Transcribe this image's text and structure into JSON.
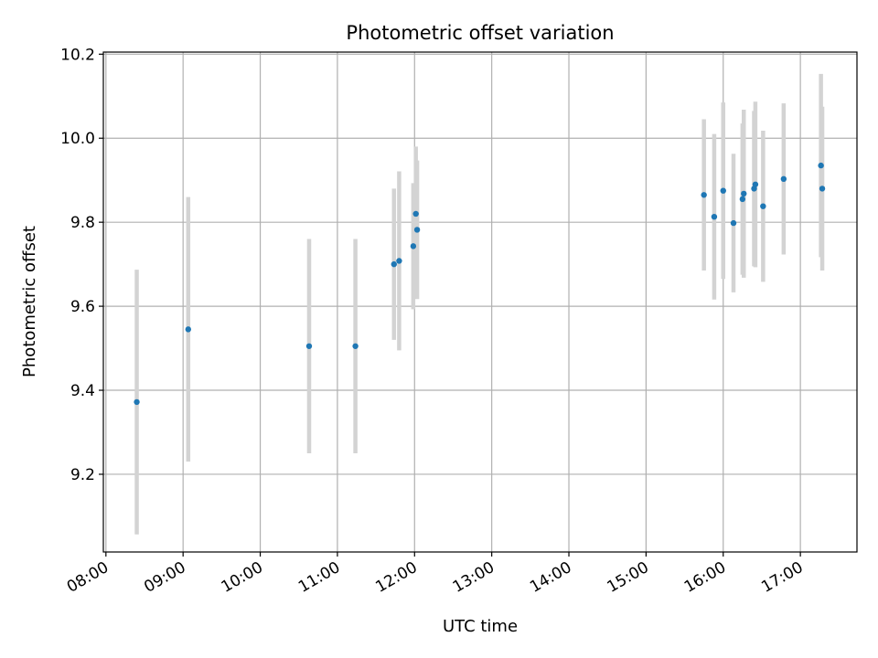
{
  "chart_data": {
    "type": "scatter",
    "title": "Photometric offset variation",
    "xlabel": "UTC time",
    "ylabel": "Photometric offset",
    "x_tick_labels": [
      "08:00",
      "09:00",
      "10:00",
      "11:00",
      "12:00",
      "13:00",
      "14:00",
      "15:00",
      "16:00",
      "17:00"
    ],
    "y_tick_labels": [
      "9.2",
      "9.4",
      "9.6",
      "9.8",
      "10.0",
      "10.2"
    ],
    "xlim": [
      "07:58",
      "17:44"
    ],
    "ylim": [
      9.015,
      10.205
    ],
    "grid": true,
    "colors": {
      "point": "#1f77b4",
      "errorbar": "#d3d3d3",
      "grid": "#b0b0b0"
    },
    "points": [
      {
        "x": "08:24",
        "y": 9.372,
        "err": 0.315
      },
      {
        "x": "09:04",
        "y": 9.545,
        "err": 0.315
      },
      {
        "x": "10:38",
        "y": 9.505,
        "err": 0.255
      },
      {
        "x": "11:14",
        "y": 9.505,
        "err": 0.255
      },
      {
        "x": "11:44",
        "y": 9.7,
        "err": 0.18
      },
      {
        "x": "11:48",
        "y": 9.708,
        "err": 0.213
      },
      {
        "x": "11:59",
        "y": 9.743,
        "err": 0.15
      },
      {
        "x": "12:01",
        "y": 9.82,
        "err": 0.16
      },
      {
        "x": "12:02",
        "y": 9.782,
        "err": 0.165
      },
      {
        "x": "15:45",
        "y": 9.865,
        "err": 0.18
      },
      {
        "x": "15:53",
        "y": 9.813,
        "err": 0.197
      },
      {
        "x": "16:00",
        "y": 9.875,
        "err": 0.21
      },
      {
        "x": "16:08",
        "y": 9.798,
        "err": 0.165
      },
      {
        "x": "16:15",
        "y": 9.855,
        "err": 0.18
      },
      {
        "x": "16:16",
        "y": 9.868,
        "err": 0.2
      },
      {
        "x": "16:24",
        "y": 9.88,
        "err": 0.185
      },
      {
        "x": "16:25",
        "y": 9.89,
        "err": 0.197
      },
      {
        "x": "16:31",
        "y": 9.838,
        "err": 0.18
      },
      {
        "x": "16:47",
        "y": 9.903,
        "err": 0.18
      },
      {
        "x": "17:16",
        "y": 9.935,
        "err": 0.218
      },
      {
        "x": "17:17",
        "y": 9.88,
        "err": 0.195
      }
    ]
  }
}
